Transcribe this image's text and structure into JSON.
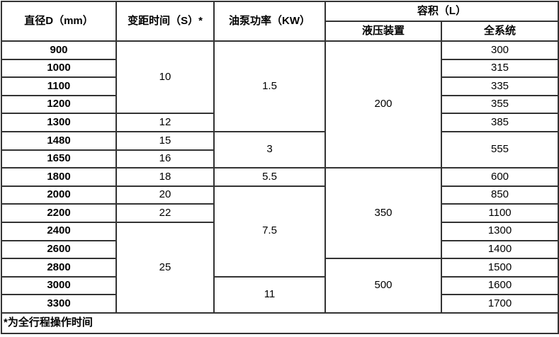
{
  "table": {
    "header": {
      "diameter": "直径D（mm）",
      "pitch_time": "变距时间（S）*",
      "pump_power": "油泵功率（KW）",
      "volume": "容积（L）",
      "hydraulic": "液压装置",
      "full_system": "全系统"
    },
    "body_rows": [
      {
        "cells": [
          {
            "text": "900",
            "col": "diameter",
            "rowspan": 1,
            "bold": true
          },
          {
            "text": "10",
            "col": "pitch-time",
            "rowspan": 4,
            "bold": false
          },
          {
            "text": "1.5",
            "col": "pump-power",
            "rowspan": 5,
            "bold": false
          },
          {
            "text": "200",
            "col": "hydraulic",
            "rowspan": 7,
            "bold": false
          },
          {
            "text": "300",
            "col": "full-system",
            "rowspan": 1,
            "bold": false
          }
        ]
      },
      {
        "cells": [
          {
            "text": "1000",
            "col": "diameter",
            "rowspan": 1,
            "bold": true
          },
          {
            "text": "315",
            "col": "full-system",
            "rowspan": 1,
            "bold": false
          }
        ]
      },
      {
        "cells": [
          {
            "text": "1100",
            "col": "diameter",
            "rowspan": 1,
            "bold": true
          },
          {
            "text": "335",
            "col": "full-system",
            "rowspan": 1,
            "bold": false
          }
        ]
      },
      {
        "cells": [
          {
            "text": "1200",
            "col": "diameter",
            "rowspan": 1,
            "bold": true
          },
          {
            "text": "355",
            "col": "full-system",
            "rowspan": 1,
            "bold": false
          }
        ]
      },
      {
        "cells": [
          {
            "text": "1300",
            "col": "diameter",
            "rowspan": 1,
            "bold": true
          },
          {
            "text": "12",
            "col": "pitch-time",
            "rowspan": 1,
            "bold": false
          },
          {
            "text": "385",
            "col": "full-system",
            "rowspan": 1,
            "bold": false
          }
        ]
      },
      {
        "cells": [
          {
            "text": "1480",
            "col": "diameter",
            "rowspan": 1,
            "bold": true
          },
          {
            "text": "15",
            "col": "pitch-time",
            "rowspan": 1,
            "bold": false
          },
          {
            "text": "3",
            "col": "pump-power",
            "rowspan": 2,
            "bold": false
          },
          {
            "text": "555",
            "col": "full-system",
            "rowspan": 2,
            "bold": false
          }
        ]
      },
      {
        "cells": [
          {
            "text": "1650",
            "col": "diameter",
            "rowspan": 1,
            "bold": true
          },
          {
            "text": "16",
            "col": "pitch-time",
            "rowspan": 1,
            "bold": false
          }
        ]
      },
      {
        "cells": [
          {
            "text": "1800",
            "col": "diameter",
            "rowspan": 1,
            "bold": true
          },
          {
            "text": "18",
            "col": "pitch-time",
            "rowspan": 1,
            "bold": false
          },
          {
            "text": "5.5",
            "col": "pump-power",
            "rowspan": 1,
            "bold": false
          },
          {
            "text": "350",
            "col": "hydraulic",
            "rowspan": 5,
            "bold": false
          },
          {
            "text": "600",
            "col": "full-system",
            "rowspan": 1,
            "bold": false
          }
        ]
      },
      {
        "cells": [
          {
            "text": "2000",
            "col": "diameter",
            "rowspan": 1,
            "bold": true
          },
          {
            "text": "20",
            "col": "pitch-time",
            "rowspan": 1,
            "bold": false
          },
          {
            "text": "7.5",
            "col": "pump-power",
            "rowspan": 5,
            "bold": false
          },
          {
            "text": "850",
            "col": "full-system",
            "rowspan": 1,
            "bold": false
          }
        ]
      },
      {
        "cells": [
          {
            "text": "2200",
            "col": "diameter",
            "rowspan": 1,
            "bold": true
          },
          {
            "text": "22",
            "col": "pitch-time",
            "rowspan": 1,
            "bold": false
          },
          {
            "text": "1100",
            "col": "full-system",
            "rowspan": 1,
            "bold": false
          }
        ]
      },
      {
        "cells": [
          {
            "text": "2400",
            "col": "diameter",
            "rowspan": 1,
            "bold": true
          },
          {
            "text": "25",
            "col": "pitch-time",
            "rowspan": 5,
            "bold": false
          },
          {
            "text": "1300",
            "col": "full-system",
            "rowspan": 1,
            "bold": false
          }
        ]
      },
      {
        "cells": [
          {
            "text": "2600",
            "col": "diameter",
            "rowspan": 1,
            "bold": true
          },
          {
            "text": "1400",
            "col": "full-system",
            "rowspan": 1,
            "bold": false
          }
        ]
      },
      {
        "cells": [
          {
            "text": "2800",
            "col": "diameter",
            "rowspan": 1,
            "bold": true
          },
          {
            "text": "500",
            "col": "hydraulic",
            "rowspan": 3,
            "bold": false
          },
          {
            "text": "1500",
            "col": "full-system",
            "rowspan": 1,
            "bold": false
          }
        ]
      },
      {
        "cells": [
          {
            "text": "3000",
            "col": "diameter",
            "rowspan": 1,
            "bold": true
          },
          {
            "text": "11",
            "col": "pump-power",
            "rowspan": 2,
            "bold": false
          },
          {
            "text": "1600",
            "col": "full-system",
            "rowspan": 1,
            "bold": false
          }
        ]
      },
      {
        "cells": [
          {
            "text": "3300",
            "col": "diameter",
            "rowspan": 1,
            "bold": true
          },
          {
            "text": "1700",
            "col": "full-system",
            "rowspan": 1,
            "bold": false
          }
        ]
      }
    ],
    "footnote": "*为全行程操作时间"
  },
  "chart_data": {
    "type": "table",
    "columns": [
      "直径D（mm）",
      "变距时间（S）*",
      "油泵功率（KW）",
      "容积（L）液压装置",
      "容积（L）全系统"
    ],
    "rows": [
      [
        900,
        10,
        1.5,
        200,
        300
      ],
      [
        1000,
        10,
        1.5,
        200,
        315
      ],
      [
        1100,
        10,
        1.5,
        200,
        335
      ],
      [
        1200,
        10,
        1.5,
        200,
        355
      ],
      [
        1300,
        12,
        1.5,
        200,
        385
      ],
      [
        1480,
        15,
        3,
        200,
        555
      ],
      [
        1650,
        16,
        3,
        200,
        555
      ],
      [
        1800,
        18,
        5.5,
        350,
        600
      ],
      [
        2000,
        20,
        7.5,
        350,
        850
      ],
      [
        2200,
        22,
        7.5,
        350,
        1100
      ],
      [
        2400,
        25,
        7.5,
        350,
        1300
      ],
      [
        2600,
        25,
        7.5,
        350,
        1400
      ],
      [
        2800,
        25,
        7.5,
        500,
        1500
      ],
      [
        3000,
        25,
        11,
        500,
        1600
      ],
      [
        3300,
        25,
        11,
        500,
        1700
      ]
    ],
    "footnote": "*为全行程操作时间"
  }
}
